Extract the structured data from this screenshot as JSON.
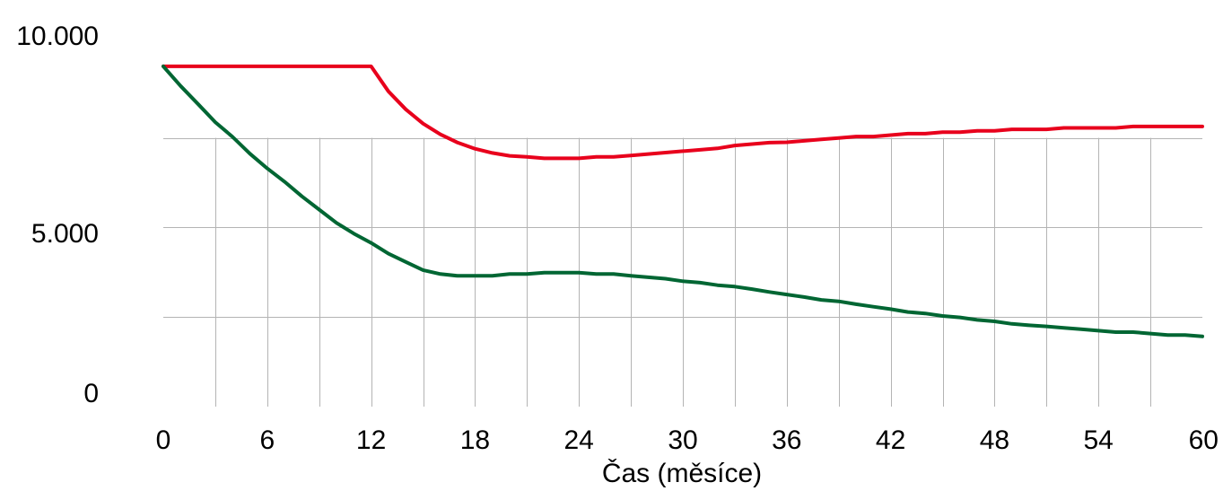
{
  "chart_data": {
    "type": "line",
    "title": "",
    "xlabel": "Čas (měsíce)",
    "ylabel": "",
    "xlim": [
      0,
      60
    ],
    "ylim": [
      0,
      11000
    ],
    "x_ticks": [
      0,
      6,
      12,
      18,
      24,
      30,
      36,
      42,
      48,
      54,
      60
    ],
    "x_tick_labels": [
      "0",
      "6",
      "12",
      "18",
      "24",
      "30",
      "36",
      "42",
      "48",
      "54",
      "60"
    ],
    "y_ticks": [
      0,
      5000,
      10000
    ],
    "y_tick_labels": [
      "0",
      "5.000",
      "10.000"
    ],
    "y_gridlines": [
      2500,
      5000,
      7500
    ],
    "x_minor_gridlines": [
      3,
      6,
      9,
      12,
      15,
      18,
      21,
      24,
      27,
      30,
      33,
      36,
      39,
      42,
      45,
      48,
      51,
      54,
      57
    ],
    "grid": true,
    "legend": "none",
    "x": [
      0,
      1,
      2,
      3,
      4,
      5,
      6,
      7,
      8,
      9,
      10,
      11,
      12,
      13,
      14,
      15,
      16,
      17,
      18,
      19,
      20,
      21,
      22,
      23,
      24,
      25,
      26,
      27,
      28,
      29,
      30,
      31,
      32,
      33,
      34,
      35,
      36,
      37,
      38,
      39,
      40,
      41,
      42,
      43,
      44,
      45,
      46,
      47,
      48,
      49,
      50,
      51,
      52,
      53,
      54,
      55,
      56,
      57,
      58,
      59,
      60
    ],
    "series": [
      {
        "color": "#e8001c",
        "values": [
          9500,
          9500,
          9500,
          9500,
          9500,
          9500,
          9500,
          9500,
          9500,
          9500,
          9500,
          9500,
          9500,
          8800,
          8300,
          7900,
          7600,
          7370,
          7200,
          7080,
          7000,
          6970,
          6930,
          6930,
          6930,
          6970,
          6970,
          7010,
          7050,
          7090,
          7130,
          7170,
          7210,
          7290,
          7330,
          7370,
          7380,
          7420,
          7460,
          7500,
          7540,
          7540,
          7580,
          7620,
          7620,
          7660,
          7660,
          7700,
          7700,
          7740,
          7740,
          7740,
          7780,
          7780,
          7780,
          7780,
          7820,
          7820,
          7820,
          7820,
          7820
        ]
      },
      {
        "color": "#006633",
        "values": [
          9500,
          8950,
          8450,
          7940,
          7530,
          7060,
          6650,
          6280,
          5870,
          5500,
          5130,
          4830,
          4570,
          4270,
          4040,
          3810,
          3700,
          3650,
          3650,
          3650,
          3700,
          3700,
          3740,
          3740,
          3740,
          3700,
          3700,
          3650,
          3610,
          3570,
          3500,
          3460,
          3390,
          3350,
          3280,
          3200,
          3130,
          3060,
          2980,
          2940,
          2860,
          2790,
          2720,
          2640,
          2600,
          2530,
          2490,
          2420,
          2380,
          2310,
          2270,
          2240,
          2200,
          2160,
          2120,
          2080,
          2080,
          2040,
          2000,
          2000,
          1960
        ]
      }
    ]
  }
}
